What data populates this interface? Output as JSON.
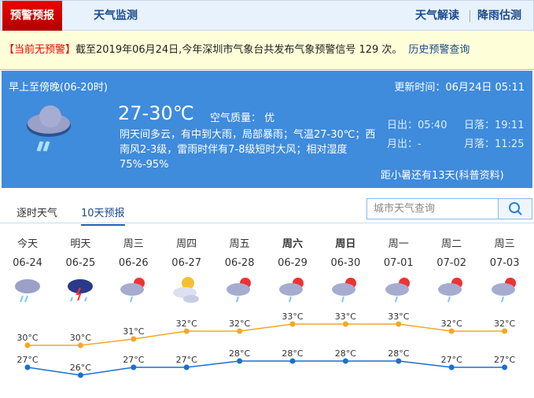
{
  "nav": {
    "active": "预警预报",
    "monitor": "天气监测",
    "interpret": "天气解读",
    "rain": "降雨估测"
  },
  "alert": {
    "status": "【当前无预警】",
    "text": "截至2019年06月24日,今年深圳市气象台共发布气象预警信号 129 次。",
    "history": "历史预警查询"
  },
  "today": {
    "period": "早上至傍晚(06-20时)",
    "updated": "更新时间：06月24日 05:11",
    "temp": "27-30℃",
    "aqi": "空气质量： 优",
    "desc": "阴天间多云，有中到大雨，局部暴雨；气温27-30℃；西南风2-3级，雷雨时伴有7-8级短时大风；相对湿度75%-95%",
    "sunrise": "日出：05:40",
    "sunset": "日落：19:11",
    "moonrise": "月出：-",
    "moonset": "月落：11:25",
    "solar_term": "距小暑还有13天(科普资料)",
    "icon": "heavy-rain-icon"
  },
  "tabs": [
    "逐时天气",
    "10天预报"
  ],
  "search": {
    "placeholder": "城市天气查询"
  },
  "colors": {
    "high": "#f5a623",
    "low": "#1a6fd0",
    "panel": "#3f8bdc",
    "alert_red": "#ee0000"
  },
  "forecast": [
    {
      "day": "今天",
      "date": "06-24",
      "icon": "rain-icon",
      "bold": false
    },
    {
      "day": "明天",
      "date": "06-25",
      "icon": "thunderstorm-icon",
      "bold": false
    },
    {
      "day": "周三",
      "date": "06-26",
      "icon": "partly-cloudy-shower-icon",
      "bold": false
    },
    {
      "day": "周四",
      "date": "06-27",
      "icon": "partly-cloudy-icon",
      "bold": false
    },
    {
      "day": "周五",
      "date": "06-28",
      "icon": "partly-cloudy-shower-icon",
      "bold": false
    },
    {
      "day": "周六",
      "date": "06-29",
      "icon": "partly-cloudy-shower-icon",
      "bold": true
    },
    {
      "day": "周日",
      "date": "06-30",
      "icon": "partly-cloudy-shower-icon",
      "bold": true
    },
    {
      "day": "周一",
      "date": "07-01",
      "icon": "partly-cloudy-shower-icon",
      "bold": false
    },
    {
      "day": "周二",
      "date": "07-02",
      "icon": "partly-cloudy-shower-icon",
      "bold": false
    },
    {
      "day": "周三",
      "date": "07-03",
      "icon": "partly-cloudy-shower-icon",
      "bold": false
    }
  ],
  "chart_data": {
    "type": "line",
    "categories": [
      "06-24",
      "06-25",
      "06-26",
      "06-27",
      "06-28",
      "06-29",
      "06-30",
      "07-01",
      "07-02",
      "07-03"
    ],
    "series": [
      {
        "values": [
          30,
          30,
          31,
          32,
          32,
          33,
          33,
          33,
          32,
          32
        ]
      },
      {
        "values": [
          27,
          26,
          27,
          27,
          28,
          28,
          28,
          28,
          27,
          27
        ]
      }
    ],
    "unit": "°C"
  }
}
